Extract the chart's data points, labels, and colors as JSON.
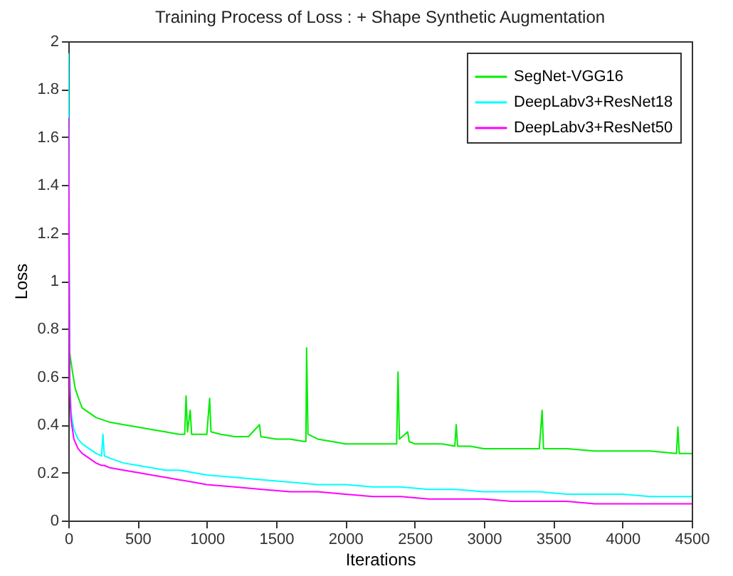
{
  "chart_data": {
    "type": "line",
    "title": "Training Process of Loss : + Shape Synthetic Augmentation",
    "xlabel": "Iterations",
    "ylabel": "Loss",
    "xlim": [
      0,
      4500
    ],
    "xticks": [
      0,
      500,
      1000,
      1500,
      2000,
      2500,
      3000,
      3500,
      4000,
      4500
    ],
    "ylim": [
      0,
      2
    ],
    "yticks": [
      0,
      0.2,
      0.4,
      0.6,
      0.8,
      1,
      1.2,
      1.4,
      1.6,
      1.8,
      2
    ],
    "grid": false,
    "legend": "top right",
    "line_style": "solid",
    "series": [
      {
        "name": "SegNet-VGG16",
        "color": "#00ee00",
        "x": [
          10,
          30,
          50,
          80,
          100,
          150,
          200,
          300,
          400,
          500,
          600,
          700,
          800,
          840,
          850,
          860,
          880,
          890,
          1000,
          1020,
          1030,
          1100,
          1200,
          1300,
          1380,
          1390,
          1500,
          1600,
          1700,
          1715,
          1720,
          1730,
          1800,
          1900,
          2000,
          2100,
          2200,
          2300,
          2370,
          2380,
          2390,
          2450,
          2460,
          2500,
          2600,
          2700,
          2790,
          2800,
          2810,
          2900,
          3000,
          3200,
          3400,
          3420,
          3430,
          3600,
          3800,
          4000,
          4200,
          4390,
          4400,
          4410,
          4500
        ],
        "values": [
          0.7,
          0.62,
          0.55,
          0.5,
          0.47,
          0.45,
          0.43,
          0.41,
          0.4,
          0.39,
          0.38,
          0.37,
          0.36,
          0.36,
          0.52,
          0.37,
          0.46,
          0.36,
          0.36,
          0.51,
          0.37,
          0.36,
          0.35,
          0.35,
          0.4,
          0.35,
          0.34,
          0.34,
          0.33,
          0.33,
          0.72,
          0.36,
          0.34,
          0.33,
          0.32,
          0.32,
          0.32,
          0.32,
          0.32,
          0.62,
          0.34,
          0.37,
          0.33,
          0.32,
          0.32,
          0.32,
          0.31,
          0.4,
          0.31,
          0.31,
          0.3,
          0.3,
          0.3,
          0.46,
          0.3,
          0.3,
          0.29,
          0.29,
          0.29,
          0.28,
          0.39,
          0.28,
          0.28
        ]
      },
      {
        "name": "DeepLabv3+ResNet18",
        "color": "#00ffff",
        "x": [
          1,
          10,
          20,
          40,
          70,
          100,
          150,
          200,
          240,
          250,
          260,
          300,
          400,
          500,
          600,
          700,
          800,
          900,
          1000,
          1200,
          1400,
          1600,
          1800,
          2000,
          2200,
          2400,
          2600,
          2800,
          3000,
          3200,
          3400,
          3600,
          3800,
          4000,
          4200,
          4400,
          4500
        ],
        "values": [
          1.95,
          0.6,
          0.45,
          0.38,
          0.34,
          0.32,
          0.3,
          0.28,
          0.27,
          0.36,
          0.27,
          0.26,
          0.24,
          0.23,
          0.22,
          0.21,
          0.21,
          0.2,
          0.19,
          0.18,
          0.17,
          0.16,
          0.15,
          0.15,
          0.14,
          0.14,
          0.13,
          0.13,
          0.12,
          0.12,
          0.12,
          0.11,
          0.11,
          0.11,
          0.1,
          0.1,
          0.1
        ]
      },
      {
        "name": "DeepLabv3+ResNet50",
        "color": "#ff00ff",
        "x": [
          1,
          10,
          20,
          40,
          70,
          100,
          150,
          200,
          240,
          250,
          260,
          300,
          400,
          500,
          600,
          700,
          800,
          900,
          1000,
          1200,
          1400,
          1600,
          1800,
          2000,
          2200,
          2400,
          2600,
          2800,
          3000,
          3200,
          3400,
          3600,
          3800,
          4000,
          4200,
          4400,
          4500
        ],
        "values": [
          1.68,
          0.55,
          0.42,
          0.34,
          0.3,
          0.28,
          0.26,
          0.24,
          0.23,
          0.23,
          0.23,
          0.22,
          0.21,
          0.2,
          0.19,
          0.18,
          0.17,
          0.16,
          0.15,
          0.14,
          0.13,
          0.12,
          0.12,
          0.11,
          0.1,
          0.1,
          0.09,
          0.09,
          0.09,
          0.08,
          0.08,
          0.08,
          0.07,
          0.07,
          0.07,
          0.07,
          0.07
        ]
      }
    ]
  }
}
